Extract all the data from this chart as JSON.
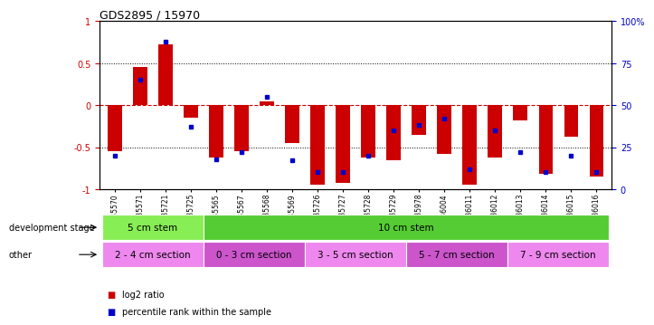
{
  "title": "GDS2895 / 15970",
  "samples": [
    "GSM35570",
    "GSM35571",
    "GSM35721",
    "GSM35725",
    "GSM35565",
    "GSM35567",
    "GSM35568",
    "GSM35569",
    "GSM35726",
    "GSM35727",
    "GSM35728",
    "GSM35729",
    "GSM35978",
    "GSM36004",
    "GSM36011",
    "GSM36012",
    "GSM36013",
    "GSM36014",
    "GSM36015",
    "GSM36016"
  ],
  "log2_ratio": [
    -0.55,
    0.45,
    0.72,
    -0.15,
    -0.62,
    -0.55,
    0.05,
    -0.45,
    -0.95,
    -0.92,
    -0.62,
    -0.65,
    -0.35,
    -0.58,
    -0.95,
    -0.62,
    -0.18,
    -0.82,
    -0.38,
    -0.85
  ],
  "percentile": [
    20,
    65,
    88,
    37,
    18,
    22,
    55,
    17,
    10,
    10,
    20,
    35,
    38,
    42,
    12,
    35,
    22,
    10,
    20,
    10
  ],
  "bar_color": "#cc0000",
  "dot_color": "#0000cc",
  "ylim_left": [
    -1,
    1
  ],
  "yticks_left": [
    -1,
    -0.5,
    0,
    0.5,
    1
  ],
  "ytick_labels_left": [
    "-1",
    "-0.5",
    "0",
    "0.5",
    "1"
  ],
  "ytick_labels_right": [
    "0",
    "25",
    "50",
    "75",
    "100%"
  ],
  "hline_color": "#cc0000",
  "dotted_color": "#000000",
  "background_chart": "#ffffff",
  "dev_stage_groups": [
    {
      "label": "5 cm stem",
      "start": 0,
      "end": 4,
      "color": "#88ee55"
    },
    {
      "label": "10 cm stem",
      "start": 4,
      "end": 20,
      "color": "#55cc33"
    }
  ],
  "other_groups": [
    {
      "label": "2 - 4 cm section",
      "start": 0,
      "end": 4,
      "color": "#ee88ee"
    },
    {
      "label": "0 - 3 cm section",
      "start": 4,
      "end": 8,
      "color": "#cc55cc"
    },
    {
      "label": "3 - 5 cm section",
      "start": 8,
      "end": 12,
      "color": "#ee88ee"
    },
    {
      "label": "5 - 7 cm section",
      "start": 12,
      "end": 16,
      "color": "#cc55cc"
    },
    {
      "label": "7 - 9 cm section",
      "start": 16,
      "end": 20,
      "color": "#ee88ee"
    }
  ],
  "legend_red": "log2 ratio",
  "legend_blue": "percentile rank within the sample",
  "bar_width": 0.55,
  "dev_label": "development stage",
  "other_label": "other"
}
